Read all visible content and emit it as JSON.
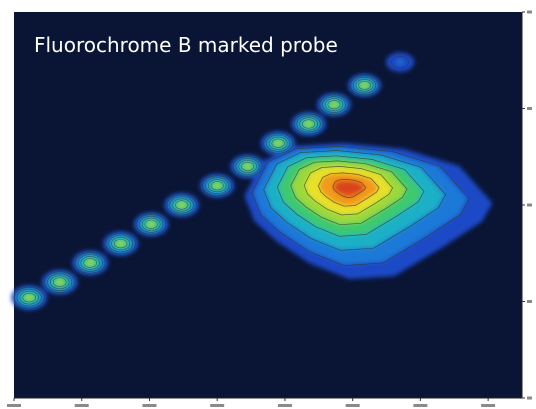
{
  "chart_data": {
    "type": "heatmap",
    "title": "Fluorochrome B marked probe",
    "xlabel": "",
    "ylabel": "",
    "grid": false,
    "legend": "none",
    "background_color": "#0a1535",
    "colormap": [
      "#1f49c6",
      "#1f79d8",
      "#1fb0c6",
      "#3ec96e",
      "#9bd83a",
      "#e8e02a",
      "#f29a1b",
      "#e5591c"
    ],
    "note_ticks": "tick labels are present but too small to read",
    "chain_peaks": [
      {
        "x": 0.03,
        "y": 0.26,
        "level": 0.62
      },
      {
        "x": 0.09,
        "y": 0.3,
        "level": 0.62
      },
      {
        "x": 0.15,
        "y": 0.35,
        "level": 0.62
      },
      {
        "x": 0.21,
        "y": 0.4,
        "level": 0.58
      },
      {
        "x": 0.27,
        "y": 0.45,
        "level": 0.56
      },
      {
        "x": 0.33,
        "y": 0.5,
        "level": 0.56
      },
      {
        "x": 0.4,
        "y": 0.55,
        "level": 0.54
      },
      {
        "x": 0.46,
        "y": 0.6,
        "level": 0.54
      },
      {
        "x": 0.52,
        "y": 0.66,
        "level": 0.56
      },
      {
        "x": 0.58,
        "y": 0.71,
        "level": 0.56
      },
      {
        "x": 0.63,
        "y": 0.76,
        "level": 0.52
      },
      {
        "x": 0.69,
        "y": 0.81,
        "level": 0.48
      },
      {
        "x": 0.76,
        "y": 0.87,
        "level": 0.22
      }
    ],
    "main_peak": {
      "x": 0.67,
      "y": 0.51,
      "level": 1.0
    }
  }
}
